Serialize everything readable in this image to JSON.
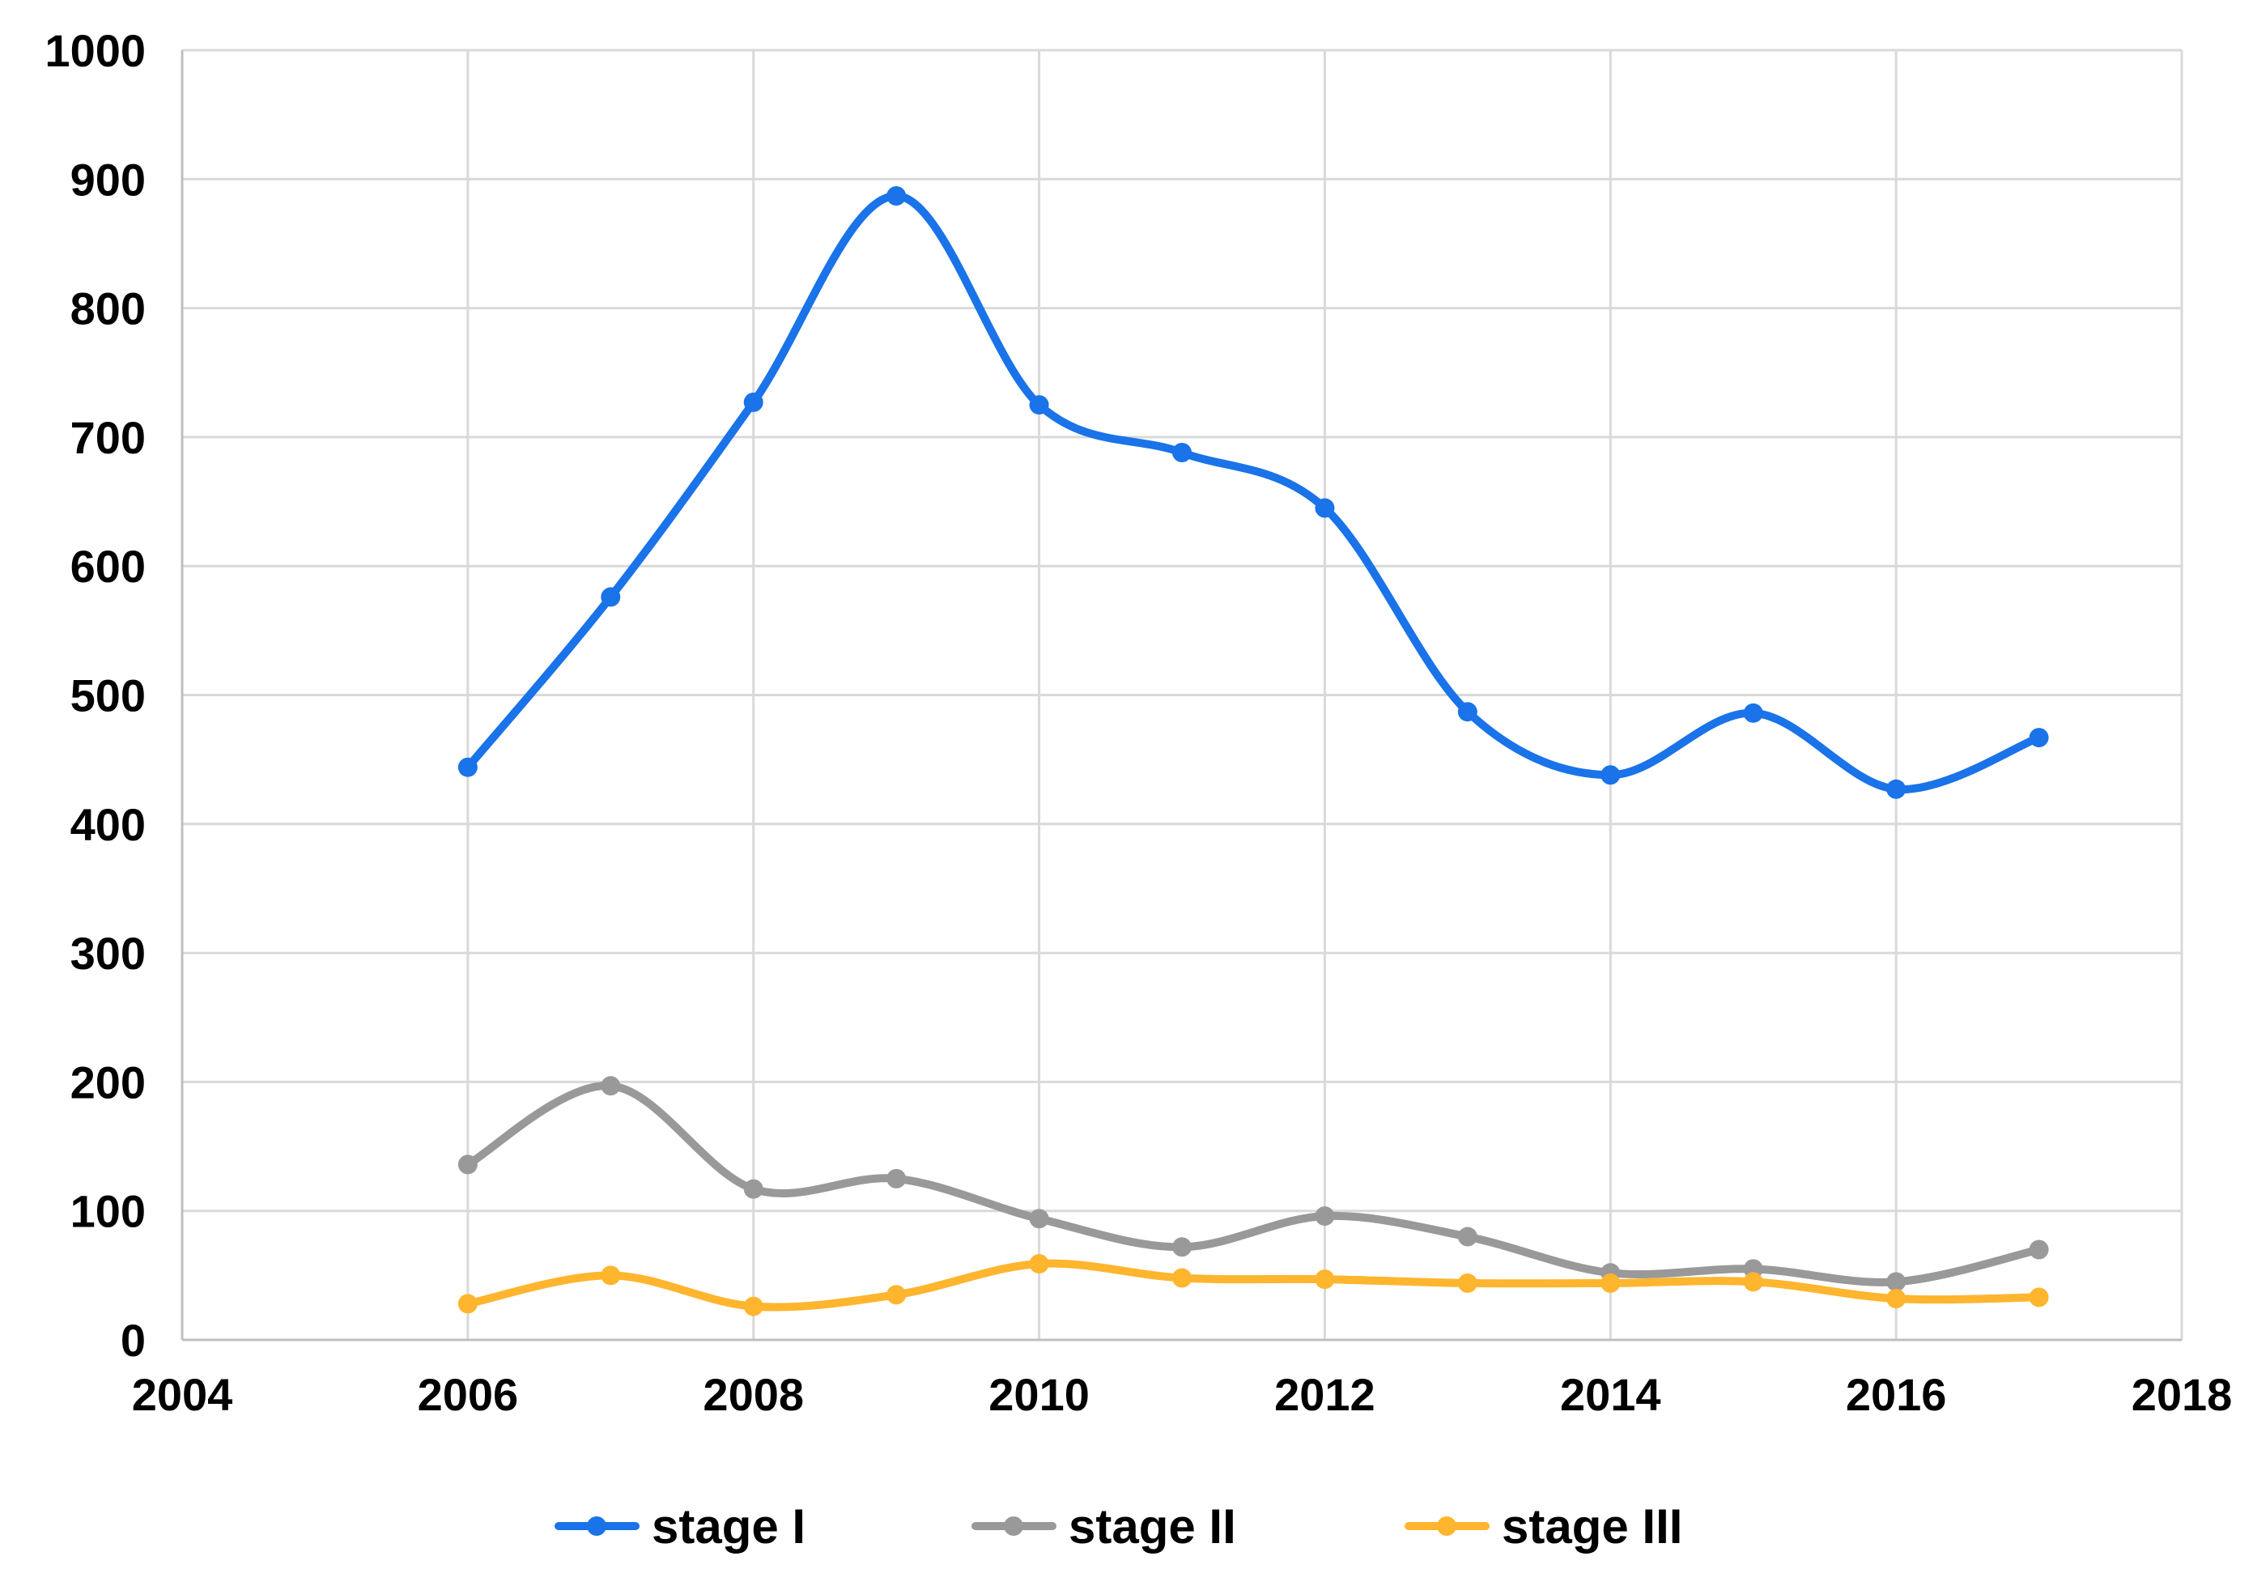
{
  "chart_data": {
    "type": "line",
    "smooth": true,
    "title": "",
    "xlabel": "",
    "ylabel": "",
    "xlim": [
      2004,
      2018
    ],
    "ylim": [
      0,
      1000
    ],
    "x_ticks": [
      "2004",
      "2006",
      "2008",
      "2010",
      "2012",
      "2014",
      "2016",
      "2018"
    ],
    "y_ticks": [
      "0",
      "100",
      "200",
      "300",
      "400",
      "500",
      "600",
      "700",
      "800",
      "900",
      "1000"
    ],
    "grid": true,
    "legend_position": "bottom",
    "x": [
      2006,
      2007,
      2008,
      2009,
      2010,
      2011,
      2012,
      2013,
      2014,
      2015,
      2016,
      2017
    ],
    "series": [
      {
        "name": "stage I",
        "color": "#1a73e8",
        "values": [
          444,
          576,
          727,
          887,
          725,
          688,
          645,
          487,
          438,
          486,
          427,
          467
        ]
      },
      {
        "name": "stage II",
        "color": "#999999",
        "values": [
          136,
          197,
          117,
          125,
          94,
          72,
          96,
          80,
          52,
          55,
          45,
          70
        ]
      },
      {
        "name": "stage III",
        "color": "#ffb52e",
        "values": [
          28,
          50,
          26,
          35,
          59,
          48,
          47,
          44,
          44,
          45,
          32,
          33
        ]
      }
    ]
  }
}
